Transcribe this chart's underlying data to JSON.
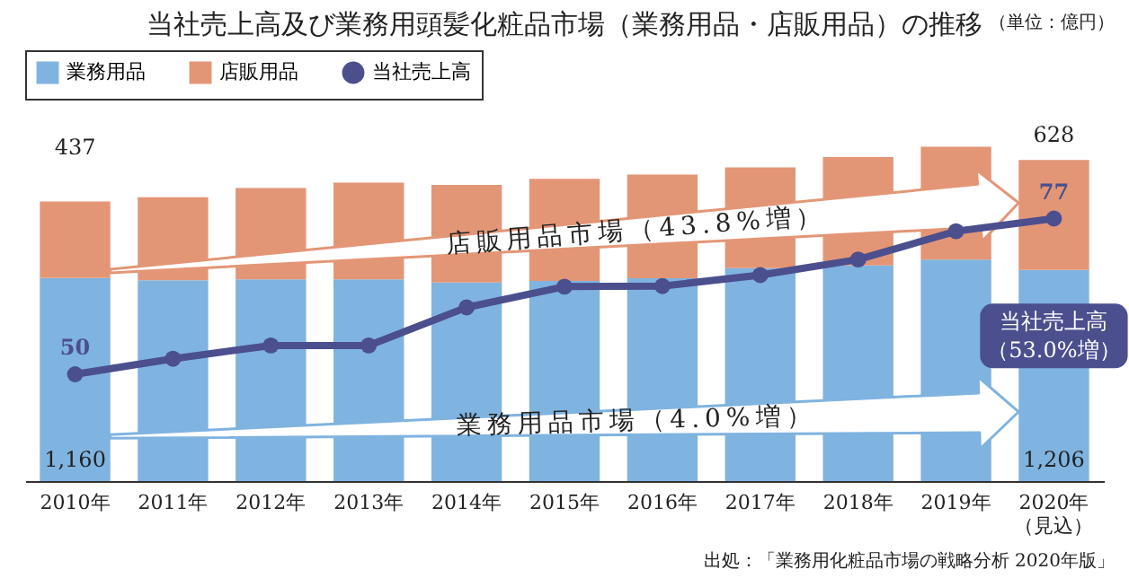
{
  "chart_data": {
    "type": "bar",
    "title": "当社売上高及び業務用頭髪化粧品市場（業務用品・店販用品）の推移",
    "categories": [
      "2010年",
      "2011年",
      "2012年",
      "2013年",
      "2014年",
      "2015年",
      "2016年",
      "2017年",
      "2018年",
      "2019年",
      "2020年（見込）"
    ],
    "stacked": true,
    "tick_labels": "x",
    "grid": false,
    "legend": "top",
    "marker": "circle",
    "line_style": "solid",
    "series": [
      {
        "name": "業務用品",
        "color": "#7fb3e0",
        "values": [
          1160,
          1147,
          1153,
          1153,
          1135,
          1144,
          1159,
          1217,
          1232,
          1265,
          1206
        ],
        "value_labels": [
          "1,160",
          null,
          null,
          null,
          null,
          null,
          null,
          null,
          null,
          null,
          "1,206"
        ]
      },
      {
        "name": "店販用品",
        "color": "#e39676",
        "values": [
          437,
          475,
          522,
          552,
          557,
          583,
          592,
          575,
          619,
          645,
          628
        ],
        "value_labels": [
          "437",
          null,
          null,
          null,
          null,
          null,
          null,
          null,
          null,
          null,
          "628"
        ]
      },
      {
        "name": "当社売上高",
        "type": "line",
        "axis": "y2",
        "color": "#4b4f8e",
        "values": [
          50,
          52.7,
          55,
          55,
          61.6,
          65.2,
          65.3,
          67.2,
          69.9,
          74.8,
          77
        ],
        "value_labels": [
          "50",
          null,
          null,
          null,
          null,
          null,
          null,
          null,
          null,
          null,
          "77"
        ]
      }
    ],
    "annotations": [
      "店販用品市場（43.8%増）",
      "業務用品市場（4.0%増）",
      "当社売上高（53.0%増）",
      "（単位：億円）",
      "出処：「業務用化粧品市場の戦略分析 2020年版」"
    ]
  }
}
